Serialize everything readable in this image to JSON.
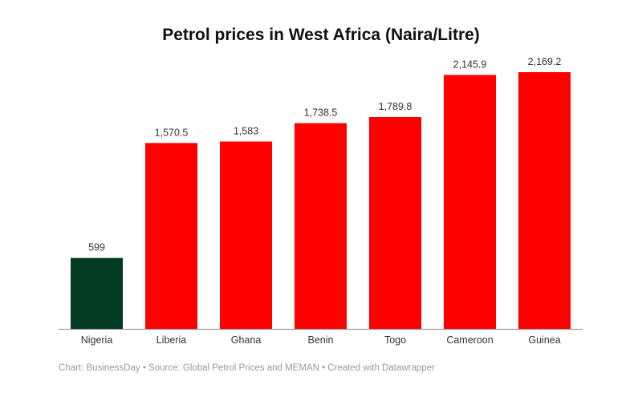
{
  "chart_data": {
    "type": "bar",
    "title": "Petrol prices in West Africa (Naira/Litre)",
    "categories": [
      "Nigeria",
      "Liberia",
      "Ghana",
      "Benin",
      "Togo",
      "Cameroon",
      "Guinea"
    ],
    "values": [
      599,
      1570.5,
      1583,
      1738.5,
      1789.8,
      2145.9,
      2169.2
    ],
    "value_labels": [
      "599",
      "1,570.5",
      "1,583",
      "1,738.5",
      "1,789.8",
      "2,145.9",
      "2,169.2"
    ],
    "bar_colors": [
      "#033a22",
      "#ff0000",
      "#ff0000",
      "#ff0000",
      "#ff0000",
      "#ff0000",
      "#ff0000"
    ],
    "xlabel": "",
    "ylabel": "",
    "ylim": [
      0,
      2169.2
    ],
    "grid": false
  },
  "footer": "Chart: BusinessDay  • Source: Global Petrol Prices and MEMAN • Created with Datawrapper"
}
